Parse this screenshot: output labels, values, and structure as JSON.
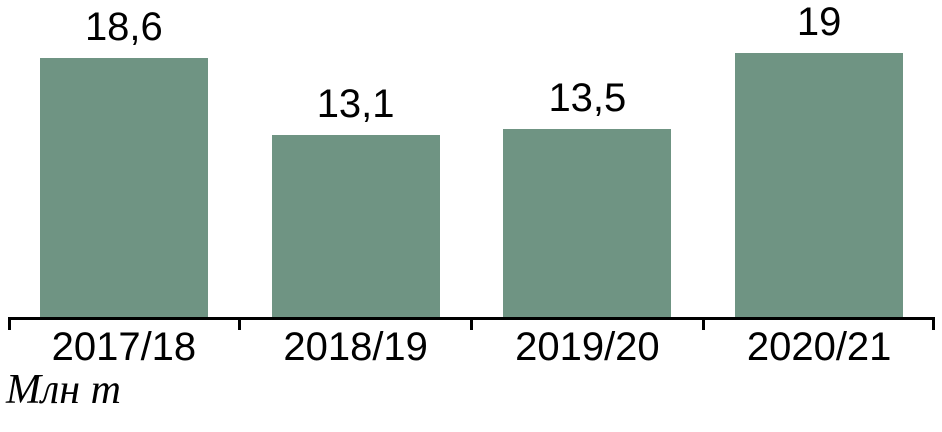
{
  "chart_data": {
    "type": "bar",
    "title": "",
    "categories": [
      "2017/18",
      "2018/19",
      "2019/20",
      "2020/21"
    ],
    "values": [
      18.6,
      13.1,
      13.5,
      19
    ],
    "value_labels": [
      "18,6",
      "13,1",
      "13,5",
      "19"
    ],
    "xlabel": "",
    "ylabel": "Млн т",
    "ylim": [
      0,
      22.8
    ],
    "grid": false,
    "legend": false,
    "bar_color": "#6F9483",
    "axis_color": "#000000",
    "text_color": "#000000"
  }
}
